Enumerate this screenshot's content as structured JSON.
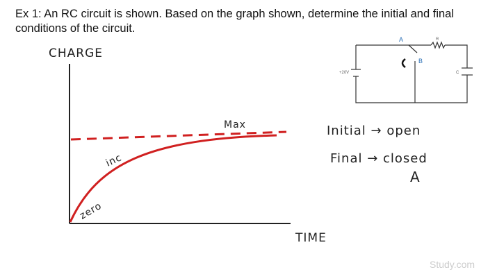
{
  "question": "Ex 1: An RC circuit is shown. Based on the graph shown, determine the initial and final conditions of the circuit.",
  "graph": {
    "y_label": "CHARGE",
    "x_label": "TIME",
    "annotations": [
      "Max",
      "inc",
      "zero"
    ]
  },
  "circuit": {
    "switch_a": "A",
    "switch_b": "B",
    "resistor": "R",
    "source": "+20V",
    "capacitor": "C"
  },
  "notes": [
    "Initial → open",
    "Final → closed",
    "A"
  ],
  "watermark": "Study.com"
}
